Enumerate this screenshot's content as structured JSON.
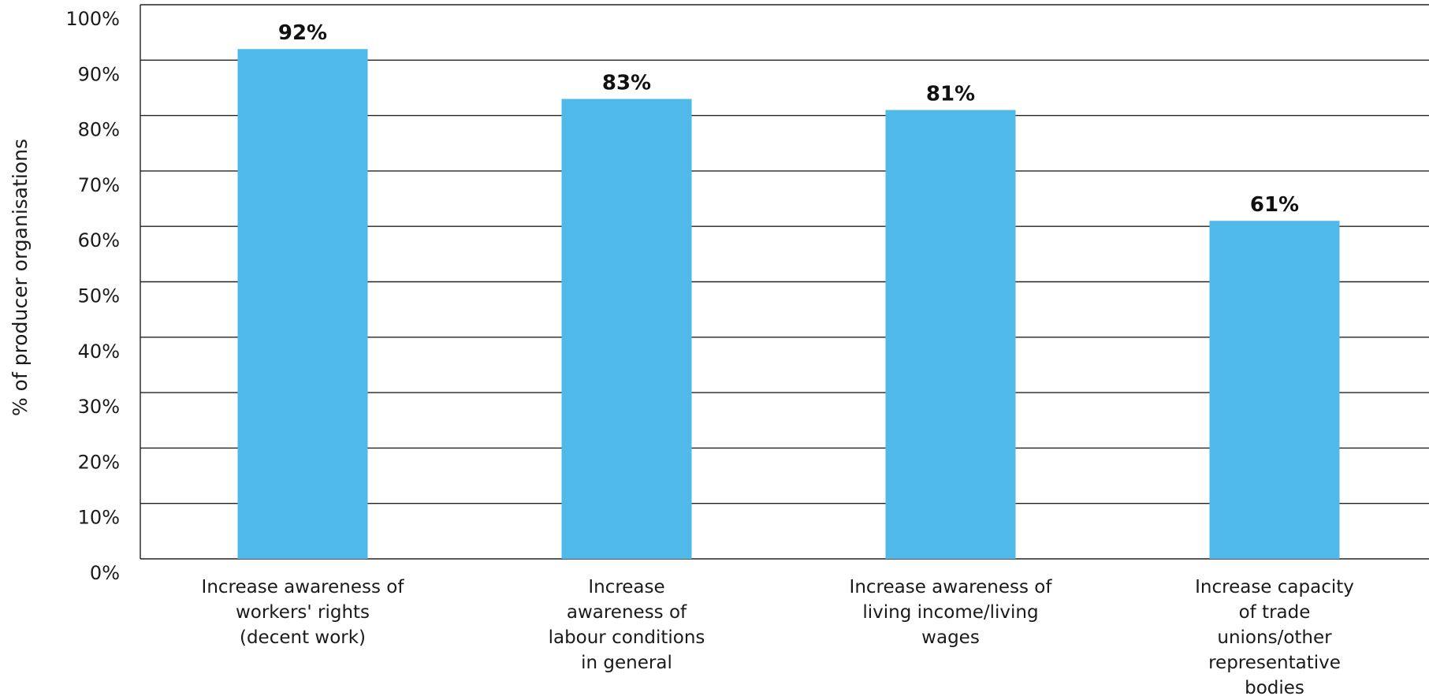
{
  "chart_data": {
    "type": "bar",
    "title": "",
    "xlabel": "",
    "ylabel": "% of producer organisations",
    "ylim": [
      0,
      100
    ],
    "y_tick_step": 10,
    "y_tick_suffix": "%",
    "grid": true,
    "bar_color": "#4FBAEA",
    "categories": [
      [
        "Increase awareness of",
        "workers' rights",
        "(decent work)"
      ],
      [
        "Increase",
        "awareness of",
        "labour conditions",
        "in general"
      ],
      [
        "Increase awareness of",
        "living income/living",
        "wages"
      ],
      [
        "Increase capacity",
        "of trade",
        "unions/other",
        "representative",
        "bodies"
      ]
    ],
    "values": [
      92,
      83,
      81,
      61
    ],
    "value_labels": [
      "92%",
      "83%",
      "81%",
      "61%"
    ]
  }
}
